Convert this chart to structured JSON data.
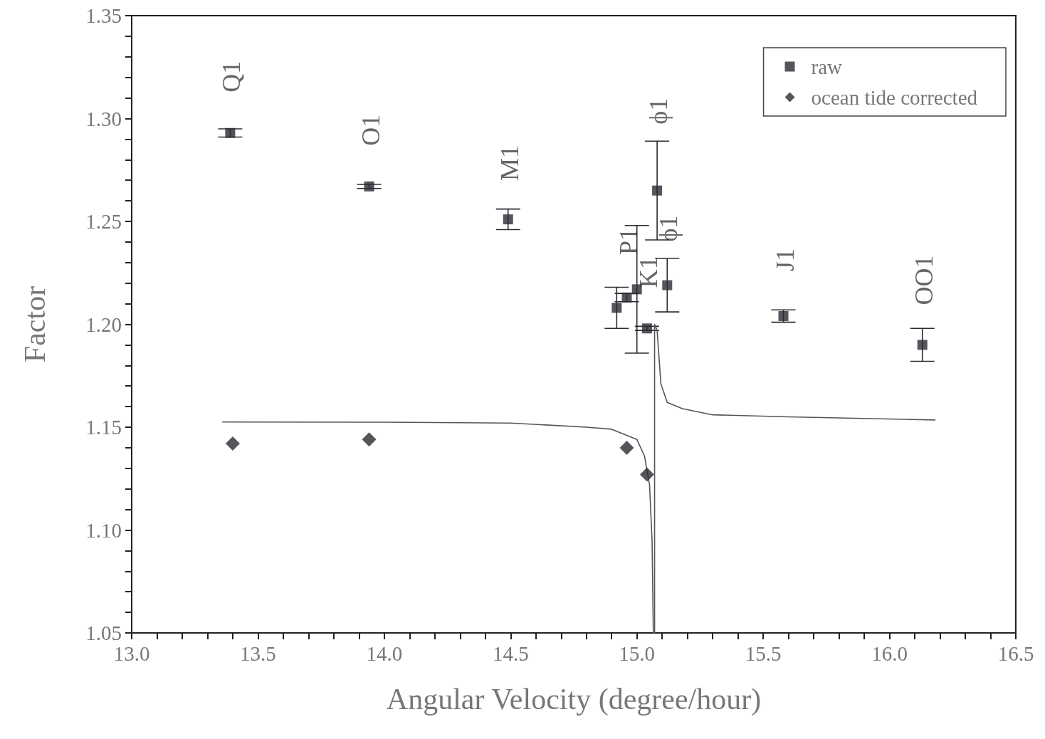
{
  "chart_data": {
    "type": "scatter",
    "xlabel": "Angular Velocity (degree/hour)",
    "ylabel": "Factor",
    "xlim": [
      13.0,
      16.5
    ],
    "xticks": [
      {
        "value": 13,
        "label": "13.0"
      },
      {
        "value": 13.1,
        "label": null
      },
      {
        "value": 13.2,
        "label": null
      },
      {
        "value": 13.3,
        "label": null
      },
      {
        "value": 13.4,
        "label": null
      },
      {
        "value": 13.5,
        "label": "13.5"
      },
      {
        "value": 13.6,
        "label": null
      },
      {
        "value": 13.7,
        "label": null
      },
      {
        "value": 13.8,
        "label": null
      },
      {
        "value": 13.9,
        "label": null
      },
      {
        "value": 14,
        "label": "14.0"
      },
      {
        "value": 14.1,
        "label": null
      },
      {
        "value": 14.2,
        "label": null
      },
      {
        "value": 14.3,
        "label": null
      },
      {
        "value": 14.4,
        "label": null
      },
      {
        "value": 14.5,
        "label": "14.5"
      },
      {
        "value": 14.6,
        "label": null
      },
      {
        "value": 14.7,
        "label": null
      },
      {
        "value": 14.8,
        "label": null
      },
      {
        "value": 14.9,
        "label": null
      },
      {
        "value": 15,
        "label": "15.0"
      },
      {
        "value": 15.1,
        "label": null
      },
      {
        "value": 15.2,
        "label": null
      },
      {
        "value": 15.3,
        "label": null
      },
      {
        "value": 15.4,
        "label": null
      },
      {
        "value": 15.5,
        "label": "15.5"
      },
      {
        "value": 15.6,
        "label": null
      },
      {
        "value": 15.7,
        "label": null
      },
      {
        "value": 15.8,
        "label": null
      },
      {
        "value": 15.9,
        "label": null
      },
      {
        "value": 16,
        "label": "16.0"
      },
      {
        "value": 16.1,
        "label": null
      },
      {
        "value": 16.2,
        "label": null
      },
      {
        "value": 16.3,
        "label": null
      },
      {
        "value": 16.4,
        "label": null
      },
      {
        "value": 16.5,
        "label": "16.5"
      }
    ],
    "ylim": [
      1.05,
      1.35
    ],
    "yticks": [
      {
        "value": 1.05,
        "label": "1.05"
      },
      {
        "value": 1.06,
        "label": null
      },
      {
        "value": 1.07,
        "label": null
      },
      {
        "value": 1.08,
        "label": null
      },
      {
        "value": 1.09,
        "label": null
      },
      {
        "value": 1.1,
        "label": "1.10"
      },
      {
        "value": 1.11,
        "label": null
      },
      {
        "value": 1.12,
        "label": null
      },
      {
        "value": 1.13,
        "label": null
      },
      {
        "value": 1.14,
        "label": null
      },
      {
        "value": 1.15,
        "label": "1.15"
      },
      {
        "value": 1.16,
        "label": null
      },
      {
        "value": 1.17,
        "label": null
      },
      {
        "value": 1.18,
        "label": null
      },
      {
        "value": 1.19,
        "label": null
      },
      {
        "value": 1.2,
        "label": "1.20"
      },
      {
        "value": 1.21,
        "label": null
      },
      {
        "value": 1.22,
        "label": null
      },
      {
        "value": 1.23,
        "label": null
      },
      {
        "value": 1.24,
        "label": null
      },
      {
        "value": 1.25,
        "label": "1.25"
      },
      {
        "value": 1.26,
        "label": null
      },
      {
        "value": 1.27,
        "label": null
      },
      {
        "value": 1.28,
        "label": null
      },
      {
        "value": 1.29,
        "label": null
      },
      {
        "value": 1.3,
        "label": "1.30"
      },
      {
        "value": 1.31,
        "label": null
      },
      {
        "value": 1.32,
        "label": null
      },
      {
        "value": 1.33,
        "label": null
      },
      {
        "value": 1.34,
        "label": null
      },
      {
        "value": 1.35,
        "label": "1.35"
      }
    ],
    "grid": false,
    "legend": "top right",
    "series": [
      {
        "name": "raw",
        "marker": "square",
        "color": "#2b2b33",
        "x": [
          13.39,
          13.94,
          14.49,
          14.92,
          14.96,
          15.0,
          15.04,
          15.08,
          15.12,
          15.58,
          16.13
        ],
        "values": [
          1.293,
          1.267,
          1.251,
          1.208,
          1.213,
          1.217,
          1.198,
          1.265,
          1.219,
          1.204,
          1.19
        ],
        "errors": [
          0.002,
          0.001,
          0.005,
          0.01,
          0.002,
          0.031,
          0.001,
          0.024,
          0.013,
          0.003,
          0.008
        ]
      },
      {
        "name": "ocean tide corrected",
        "marker": "diamond",
        "color": "#2b2b33",
        "x": [
          13.4,
          13.94,
          14.96,
          15.04
        ],
        "values": [
          1.142,
          1.144,
          1.14,
          1.127
        ]
      },
      {
        "type": "line",
        "marker": "none",
        "line_style": "solid",
        "color": "#555555",
        "x": [
          13.36,
          14.0,
          14.5,
          14.8,
          14.9,
          14.96,
          15.0,
          15.03,
          15.05,
          15.06,
          15.065
        ],
        "values": [
          1.1525,
          1.1524,
          1.152,
          1.15,
          1.149,
          1.146,
          1.144,
          1.136,
          1.122,
          1.095,
          1.05
        ]
      },
      {
        "type": "line",
        "marker": "none",
        "line_style": "solid",
        "color": "#555555",
        "x": [
          15.07,
          15.07,
          15.08,
          15.095,
          15.12,
          15.18,
          15.3,
          15.6,
          16.18
        ],
        "values": [
          1.05,
          1.2,
          1.197,
          1.171,
          1.162,
          1.159,
          1.156,
          1.155,
          1.1535
        ]
      }
    ],
    "annotations": [
      {
        "text": "Q1",
        "x": 13.39,
        "y": 1.293
      },
      {
        "text": "O1",
        "x": 13.94,
        "y": 1.267
      },
      {
        "text": "M1",
        "x": 14.49,
        "y": 1.251
      },
      {
        "text": "P1",
        "x": 14.96,
        "y": 1.213
      },
      {
        "text": "K1",
        "x": 15.04,
        "y": 1.198
      },
      {
        "text": "ϕ1",
        "x": 15.08,
        "y": 1.265
      },
      {
        "text": "ϕ1",
        "x": 15.12,
        "y": 1.219
      },
      {
        "text": "J1",
        "x": 15.58,
        "y": 1.204
      },
      {
        "text": "OO1",
        "x": 16.13,
        "y": 1.19
      }
    ]
  }
}
